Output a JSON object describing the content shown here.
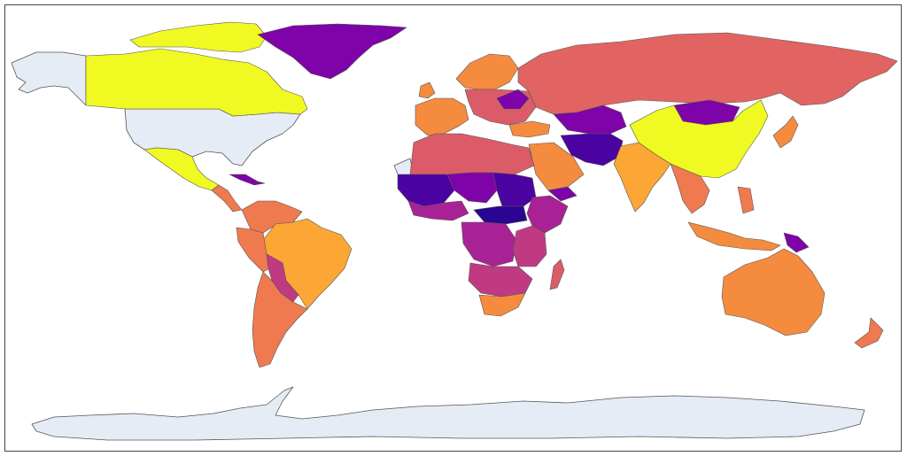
{
  "map": {
    "type": "choropleth",
    "projection": "equirectangular",
    "colorscale": "plasma",
    "colors": {
      "no_data": "#e5ecf6",
      "border": "#555555",
      "background": "#ffffff",
      "deep_blue": "#2a0593",
      "indigo": "#4b03a1",
      "violet": "#7e03a8",
      "purple": "#a82296",
      "magenta": "#c03a83",
      "red_pink": "#db5c68",
      "coral": "#e16462",
      "orange_red": "#ef7a4f",
      "orange": "#f58b3f",
      "light_orange": "#fca636",
      "amber": "#fdb130",
      "yellow": "#f0f921"
    }
  }
}
